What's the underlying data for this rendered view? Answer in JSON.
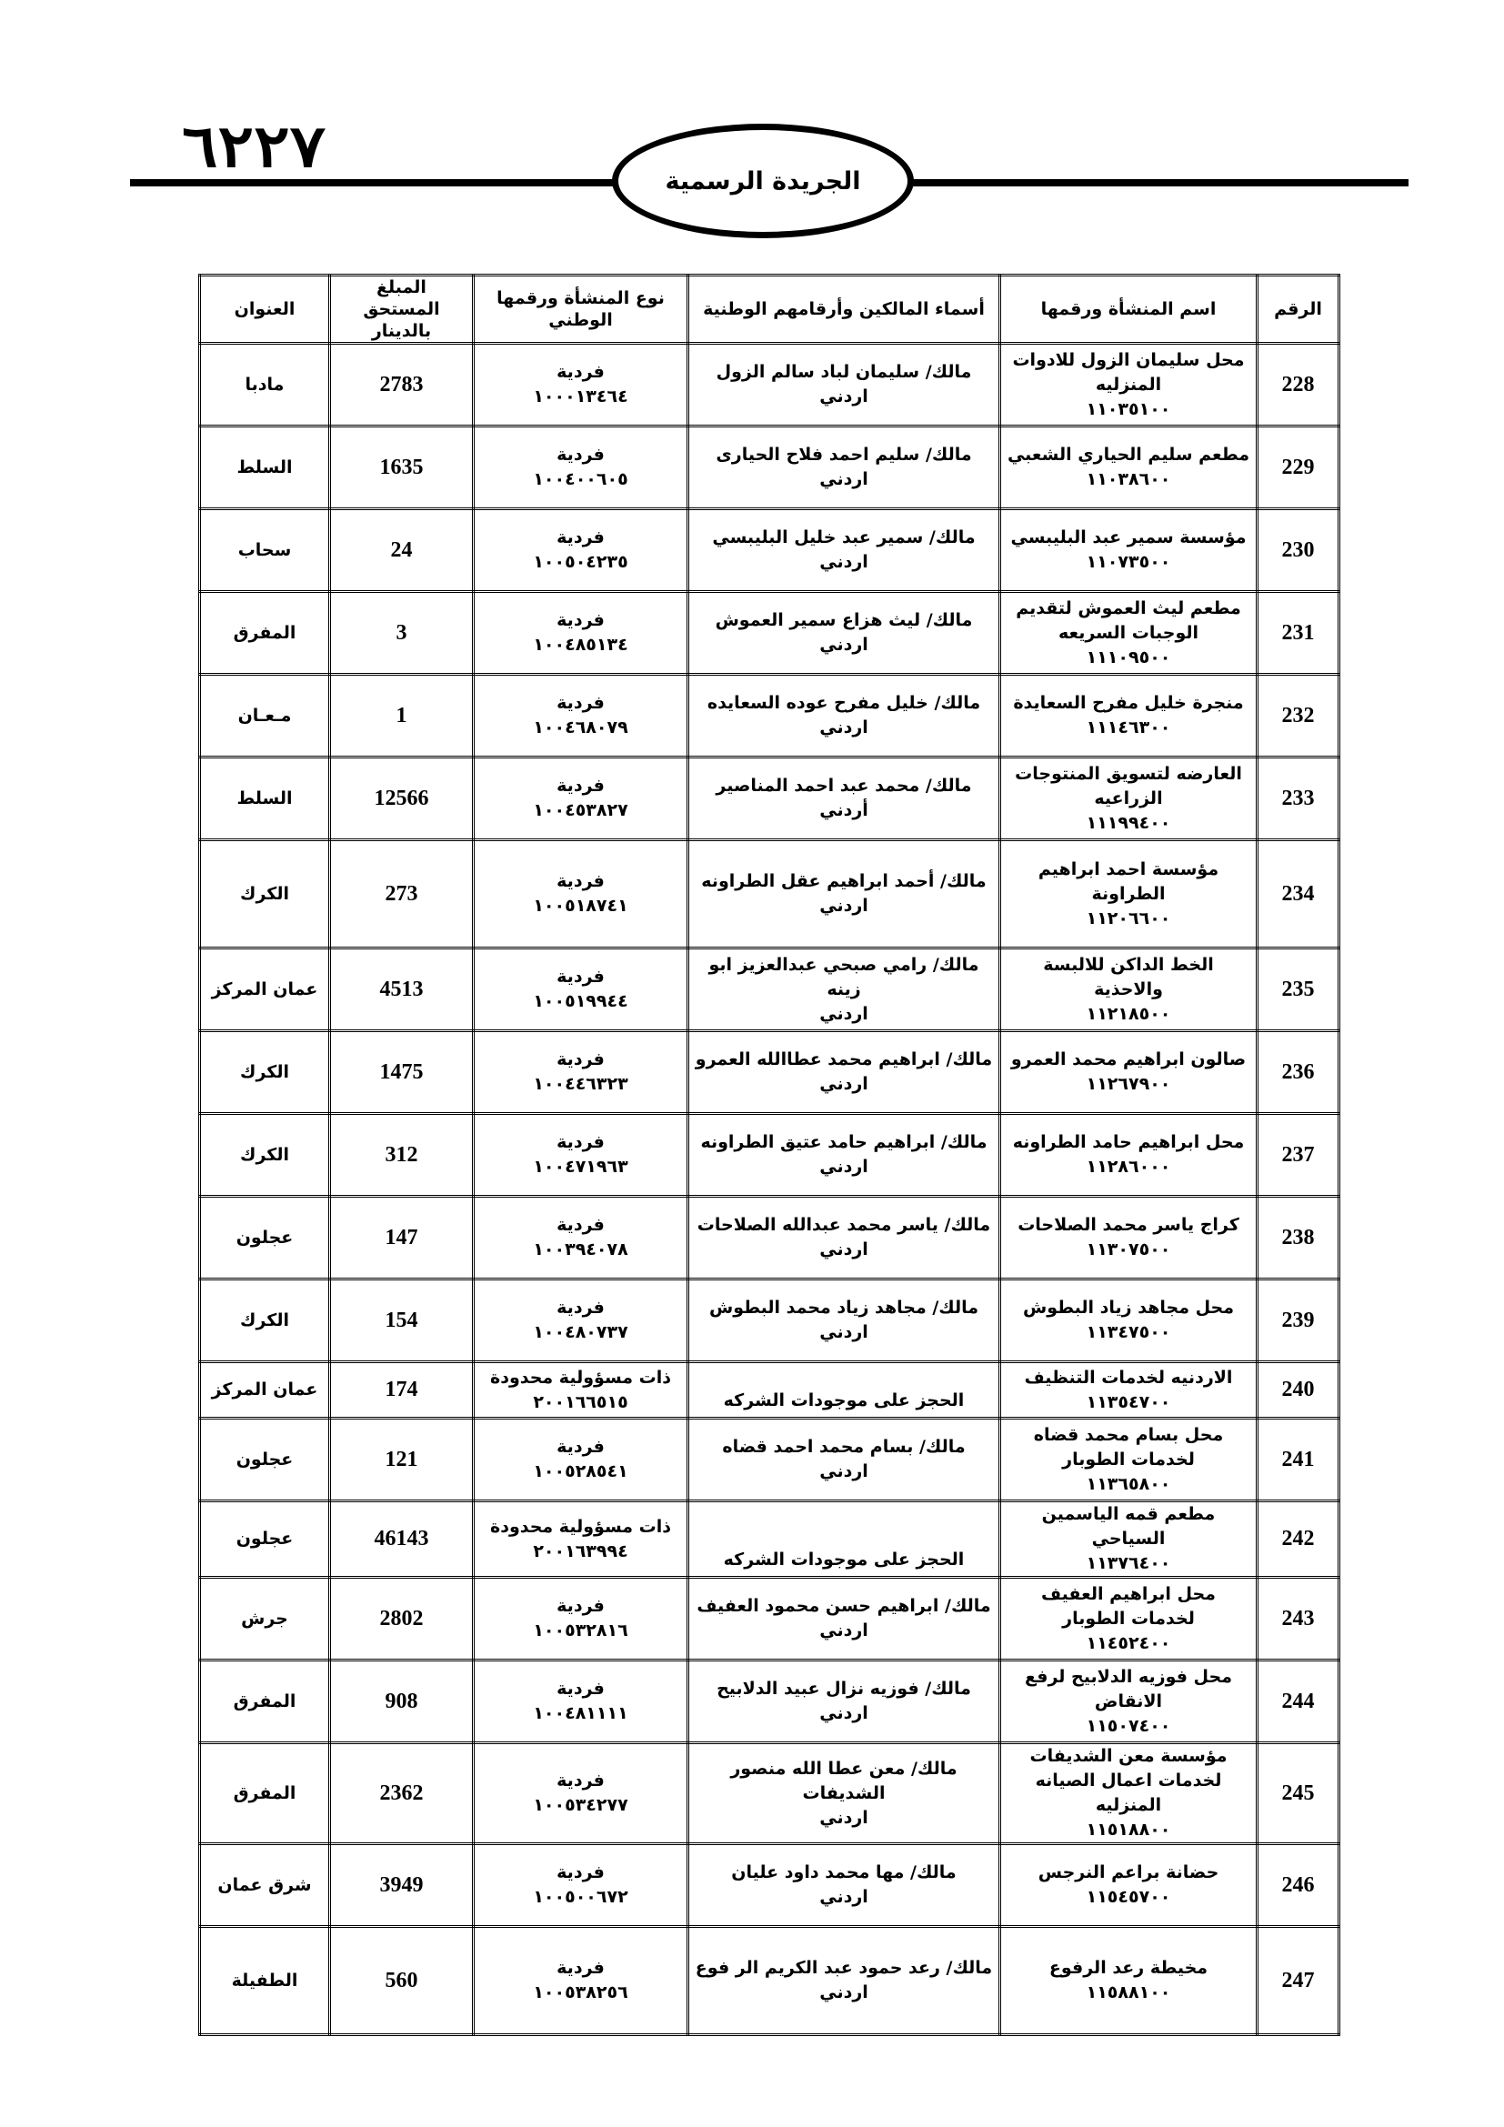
{
  "header": {
    "page_number": "٦٢٢٧",
    "title": "الجريدة الرسمية"
  },
  "table": {
    "columns": [
      "الرقم",
      "اسم المنشأة ورقمها",
      "أسماء المالكين وأرقامهم الوطنية",
      "نوع المنشأة ورقمها الوطني",
      "المبلغ المستحق بالدينار",
      "العنوان"
    ],
    "rows": [
      {
        "no": "228",
        "est_name": "محل سليمان الزول للادوات المنزليه",
        "est_no": "١١٠٣٥١٠٠",
        "owner": "مالك/ سليمان لباد سالم الزول",
        "nationality": "اردني",
        "type": "فردية",
        "national_id": "١٠٠٠١٣٤٦٤",
        "amount": "2783",
        "address": "مادبا"
      },
      {
        "no": "229",
        "est_name": "مطعم سليم الحياري الشعبي",
        "est_no": "١١٠٣٨٦٠٠",
        "owner": "مالك/ سليم احمد فلاح الحيارى",
        "nationality": "اردني",
        "type": "فردية",
        "national_id": "١٠٠٤٠٠٦٠٥",
        "amount": "1635",
        "address": "السلط"
      },
      {
        "no": "230",
        "est_name": "مؤسسة سمير عبد البليبسي",
        "est_no": "١١٠٧٣٥٠٠",
        "owner": "مالك/ سمير عبد خليل البليبسي",
        "nationality": "اردني",
        "type": "فردية",
        "national_id": "١٠٠٥٠٤٢٣٥",
        "amount": "24",
        "address": "سحاب"
      },
      {
        "no": "231",
        "est_name": "مطعم ليث العموش لتقديم الوجبات السريعه",
        "est_no": "١١١٠٩٥٠٠",
        "owner": "مالك/ ليث هزاع سمير العموش",
        "nationality": "اردني",
        "type": "فردية",
        "national_id": "١٠٠٤٨٥١٣٤",
        "amount": "3",
        "address": "المفرق"
      },
      {
        "no": "232",
        "est_name": "منجرة خليل مفرح السعايدة",
        "est_no": "١١١٤٦٣٠٠",
        "owner": "مالك/ خليل مفرح عوده السعايده",
        "nationality": "اردني",
        "type": "فردية",
        "national_id": "١٠٠٤٦٨٠٧٩",
        "amount": "1",
        "address": "مـعـان"
      },
      {
        "no": "233",
        "est_name": "العارضه لتسويق المنتوجات الزراعيه",
        "est_no": "١١١٩٩٤٠٠",
        "owner": "مالك/ محمد عبد احمد المناصير",
        "nationality": "أردني",
        "type": "فردية",
        "national_id": "١٠٠٤٥٣٨٢٧",
        "amount": "12566",
        "address": "السلط"
      },
      {
        "no": "234",
        "est_name": "مؤسسة احمد ابراهيم الطراونة",
        "est_no": "١١٢٠٦٦٠٠",
        "owner": "مالك/ أحمد ابراهيم عقل الطراونه",
        "nationality": "اردني",
        "type": "فردية",
        "national_id": "١٠٠٥١٨٧٤١",
        "amount": "273",
        "address": "الكرك"
      },
      {
        "no": "235",
        "est_name": "الخط الداكن للالبسة والاحذية",
        "est_no": "١١٢١٨٥٠٠",
        "owner": "مالك/ رامي صبحي عبدالعزيز ابو زينه",
        "nationality": "اردني",
        "type": "فردية",
        "national_id": "١٠٠٥١٩٩٤٤",
        "amount": "4513",
        "address": "عمان المركز"
      },
      {
        "no": "236",
        "est_name": "صالون ابراهيم محمد العمرو",
        "est_no": "١١٢٦٧٩٠٠",
        "owner": "مالك/ ابراهيم محمد عطاالله العمرو",
        "nationality": "اردني",
        "type": "فردية",
        "national_id": "١٠٠٤٤٦٣٢٣",
        "amount": "1475",
        "address": "الكرك"
      },
      {
        "no": "237",
        "est_name": "محل ابراهيم حامد الطراونه",
        "est_no": "١١٢٨٦٠٠٠",
        "owner": "مالك/ ابراهيم حامد عتيق الطراونه",
        "nationality": "اردني",
        "type": "فردية",
        "national_id": "١٠٠٤٧١٩٦٣",
        "amount": "312",
        "address": "الكرك"
      },
      {
        "no": "238",
        "est_name": "كراج ياسر محمد الصلاحات",
        "est_no": "١١٣٠٧٥٠٠",
        "owner": "مالك/ ياسر محمد عبدالله الصلاحات",
        "nationality": "اردني",
        "type": "فردية",
        "national_id": "١٠٠٣٩٤٠٧٨",
        "amount": "147",
        "address": "عجلون"
      },
      {
        "no": "239",
        "est_name": "محل مجاهد زياد البطوش",
        "est_no": "١١٣٤٧٥٠٠",
        "owner": "مالك/ مجاهد زياد محمد البطوش",
        "nationality": "اردني",
        "type": "فردية",
        "national_id": "١٠٠٤٨٠٧٣٧",
        "amount": "154",
        "address": "الكرك"
      },
      {
        "no": "240",
        "est_name": "الاردنيه لخدمات التنظيف",
        "est_no": "١١٣٥٤٧٠٠",
        "owner": "الحجز على موجودات الشركه",
        "nationality": "",
        "type": "ذات مسؤولية محدودة",
        "national_id": "٢٠٠١٦٦٥١٥",
        "amount": "174",
        "address": "عمان المركز"
      },
      {
        "no": "241",
        "est_name": "محل بسام محمد قضاه لخدمات الطوبار",
        "est_no": "١١٣٦٥٨٠٠",
        "owner": "مالك/ بسام محمد احمد قضاه",
        "nationality": "اردني",
        "type": "فردية",
        "national_id": "١٠٠٥٢٨٥٤١",
        "amount": "121",
        "address": "عجلون"
      },
      {
        "no": "242",
        "est_name": "مطعم قمه الياسمين السياحي",
        "est_no": "١١٣٧٦٤٠٠",
        "owner": "الحجز على موجودات الشركه",
        "nationality": "",
        "type": "ذات مسؤولية محدودة",
        "national_id": "٢٠٠١٦٣٩٩٤",
        "amount": "46143",
        "address": "عجلون"
      },
      {
        "no": "243",
        "est_name": "محل ابراهيم العفيف لخدمات الطوبار",
        "est_no": "١١٤٥٢٤٠٠",
        "owner": "مالك/ ابراهيم حسن محمود العفيف",
        "nationality": "اردني",
        "type": "فردية",
        "national_id": "١٠٠٥٣٢٨١٦",
        "amount": "2802",
        "address": "جرش"
      },
      {
        "no": "244",
        "est_name": "محل فوزيه الدلابيح لرفع الانقاض",
        "est_no": "١١٥٠٧٤٠٠",
        "owner": "مالك/ فوزيه نزال عبيد الدلابيح",
        "nationality": "اردني",
        "type": "فردية",
        "national_id": "١٠٠٤٨١١١١",
        "amount": "908",
        "address": "المفرق"
      },
      {
        "no": "245",
        "est_name": "مؤسسة معن الشديفات لخدمات اعمال الصيانه المنزليه",
        "est_no": "١١٥١٨٨٠٠",
        "owner": "مالك/ معن عطا الله منصور الشديفات",
        "nationality": "اردني",
        "type": "فردية",
        "national_id": "١٠٠٥٣٤٢٧٧",
        "amount": "2362",
        "address": "المفرق"
      },
      {
        "no": "246",
        "est_name": "حضانة براعم النرجس",
        "est_no": "١١٥٤٥٧٠٠",
        "owner": "مالك/ مها محمد داود عليان",
        "nationality": "اردني",
        "type": "فردية",
        "national_id": "١٠٠٥٠٠٦٧٢",
        "amount": "3949",
        "address": "شرق عمان"
      },
      {
        "no": "247",
        "est_name": "مخيطة رعد الرفوع",
        "est_no": "١١٥٨٨١٠٠",
        "owner": "مالك/ رعد حمود عبد الكريم الر فوع",
        "nationality": "اردني",
        "type": "فردية",
        "national_id": "١٠٠٥٣٨٢٥٦",
        "amount": "560",
        "address": "الطفيلة"
      }
    ]
  }
}
